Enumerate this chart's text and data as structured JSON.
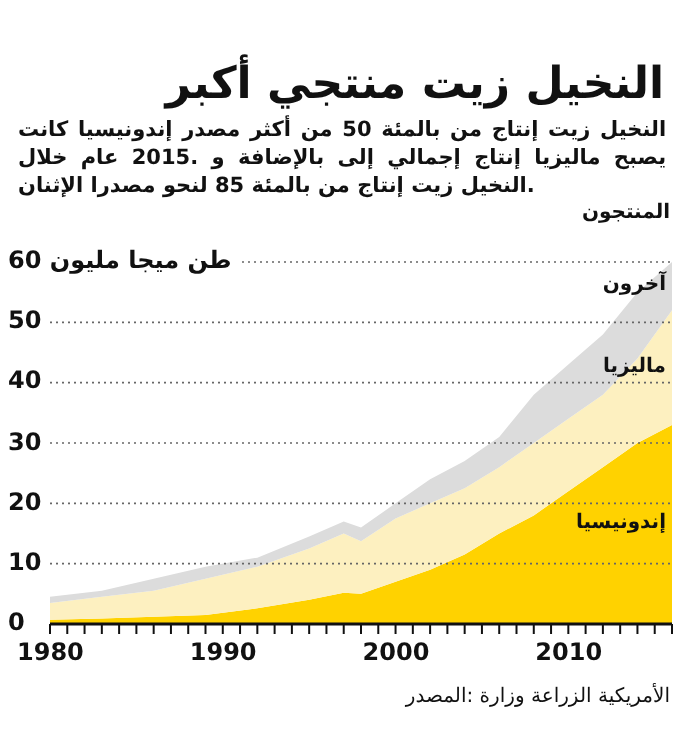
{
  "chart_data": {
    "type": "area",
    "title": "أكبر منتجي زيت النخيل",
    "subtitle": "كانت إندونيسيا مصدر أكثر من 50 بالمئة من إنتاج زيت النخيل خلال عام 2015. و بالإضافة إلى إجمالي إنتاج ماليزيا يصبح الإثنان مصدرا لنحو 85 بالمئة من إنتاج زيت النخيل.",
    "ylabel": "المنتجون",
    "annotations": [
      "المصدر: وزارة الزراعة الأمريكية"
    ],
    "stacked": true,
    "x": [
      1980,
      1983,
      1986,
      1989,
      1992,
      1995,
      1997,
      1998,
      2000,
      2002,
      2004,
      2006,
      2008,
      2010,
      2012,
      2014,
      2016
    ],
    "series": [
      {
        "name": "إندونيسيا",
        "color": "#ffd200",
        "values": [
          0.7,
          0.9,
          1.2,
          1.5,
          2.6,
          4.0,
          5.2,
          5.0,
          7.0,
          9.0,
          11.5,
          15,
          18,
          22,
          26,
          30,
          33
        ]
      },
      {
        "name": "ماليزيا",
        "color": "#fdf0c0",
        "values": [
          2.8,
          3.6,
          4.3,
          6.0,
          6.9,
          8.5,
          9.8,
          8.7,
          10.5,
          11,
          11,
          11,
          12,
          12,
          12,
          14,
          19
        ]
      },
      {
        "name": "آخرون",
        "color": "#dcdcdc",
        "values": [
          1.0,
          1.0,
          2.0,
          2.0,
          1.5,
          2.0,
          2.0,
          2.3,
          2.5,
          4,
          4.5,
          5,
          8,
          9,
          10,
          11,
          8
        ]
      }
    ],
    "xlim": [
      1980,
      2016
    ],
    "ylim": [
      0,
      60
    ],
    "xticks": [
      1980,
      1990,
      2000,
      2010
    ],
    "yticks": [
      0,
      10,
      20,
      30,
      40,
      50,
      {
        "value": 60,
        "label": "60 مليون ميجا طن"
      }
    ],
    "grid": "y"
  }
}
